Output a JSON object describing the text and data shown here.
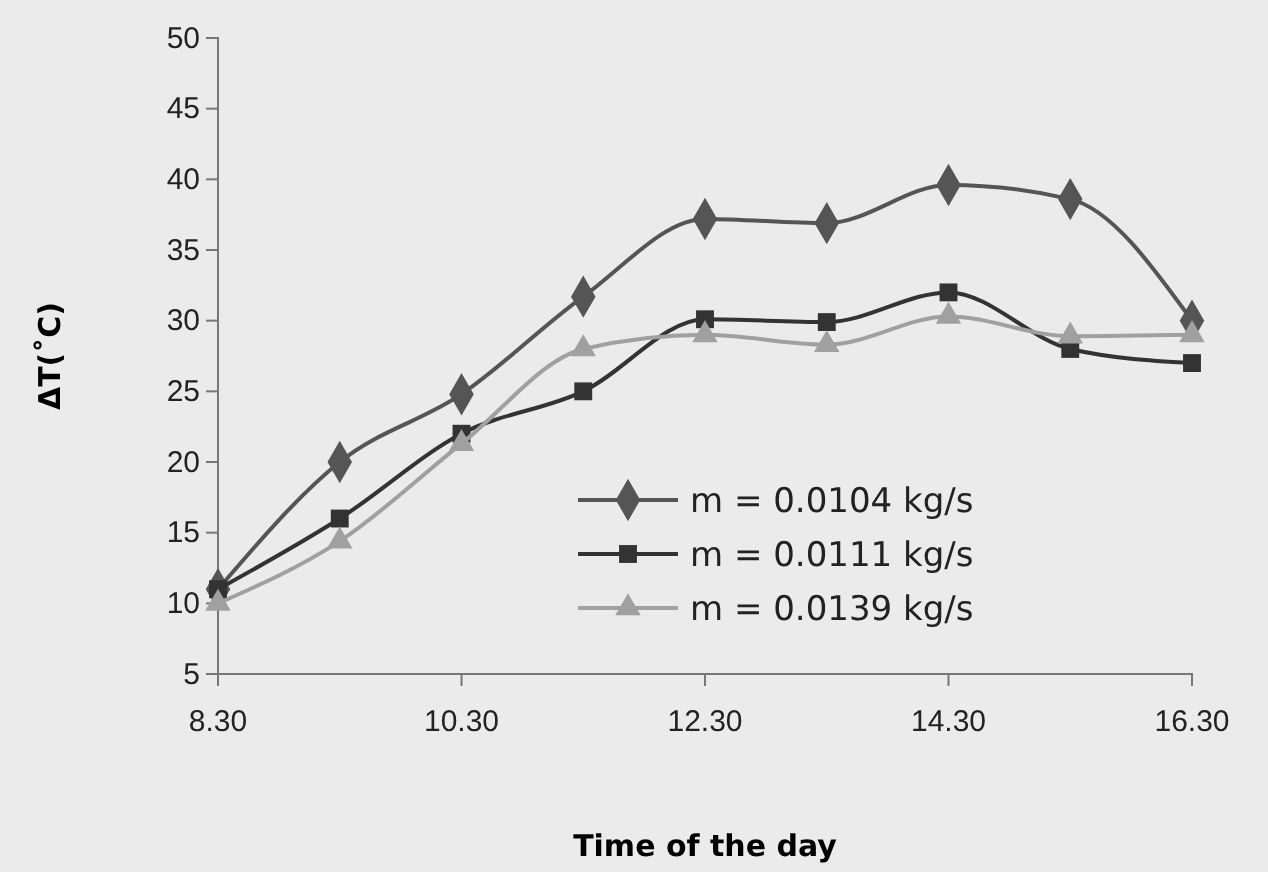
{
  "chart_data": {
    "type": "line",
    "xlabel": "Time of the day",
    "ylabel": "ΔT(˚C)",
    "categories": [
      "8.30",
      null,
      "10.30",
      null,
      "12.30",
      null,
      "14.30",
      null,
      "16.30"
    ],
    "series": [
      {
        "name": "m = 0.0104 kg/s",
        "color": "#555555",
        "marker": "diamond",
        "values": [
          11,
          20,
          24.8,
          31.7,
          37.2,
          36.9,
          39.6,
          38.6,
          30
        ]
      },
      {
        "name": "m = 0.0111 kg/s",
        "color": "#333333",
        "marker": "square",
        "values": [
          11,
          16,
          22,
          25,
          30.1,
          29.9,
          32,
          28,
          27
        ]
      },
      {
        "name": "m = 0.0139 kg/s",
        "color": "#a0a0a0",
        "marker": "triangle",
        "values": [
          10,
          14.4,
          21.3,
          28,
          29,
          28.3,
          30.3,
          28.9,
          29
        ]
      }
    ],
    "ylim": [
      5,
      50
    ],
    "yticks": [
      5,
      10,
      15,
      20,
      25,
      30,
      35,
      40,
      45,
      50
    ],
    "grid": false,
    "legend": "bottom",
    "line_style": "solid"
  }
}
